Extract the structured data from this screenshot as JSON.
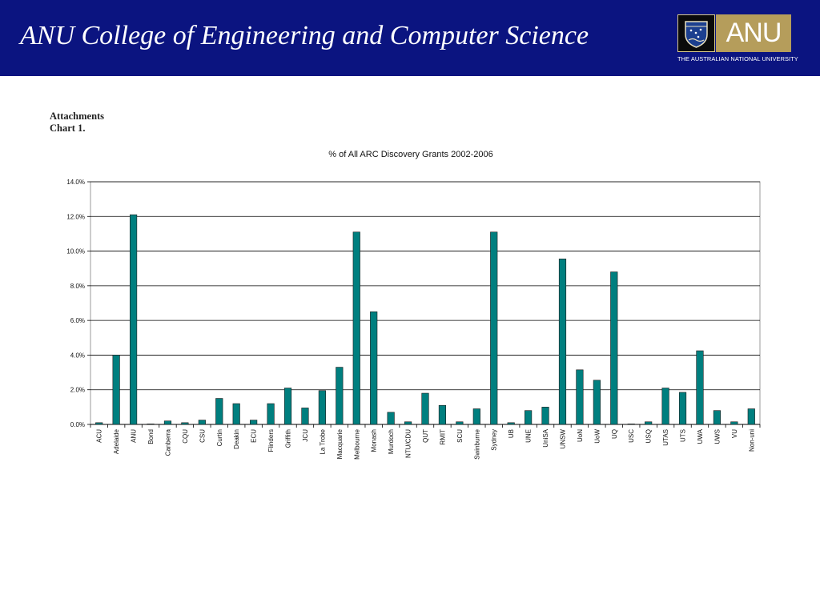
{
  "header": {
    "title": "ANU College of Engineering and Computer Science",
    "logo_text": "ANU",
    "logo_subtitle": "THE AUSTRALIAN NATIONAL UNIVERSITY",
    "logo_crest_icon": "anu-crest-icon",
    "bg_color": "#0b1480"
  },
  "attachments": {
    "line1": "Attachments",
    "line2": "Chart 1."
  },
  "chart_data": {
    "type": "bar",
    "title": "% of All ARC Discovery Grants 2002-2006",
    "xlabel": "",
    "ylabel": "",
    "ylim": [
      0,
      14
    ],
    "y_ticks": [
      "0.0%",
      "2.0%",
      "4.0%",
      "6.0%",
      "8.0%",
      "10.0%",
      "12.0%",
      "14.0%"
    ],
    "grid": true,
    "bar_color": "#007f7f",
    "categories": [
      "ACU",
      "Adelaide",
      "ANU",
      "Bond",
      "Canberra",
      "CQU",
      "CSU",
      "Curtin",
      "Deakin",
      "ECU",
      "Flinders",
      "Griffith",
      "JCU",
      "La Trobe",
      "Macquarie",
      "Melbourne",
      "Monash",
      "Murdoch",
      "NTU/CDU",
      "QUT",
      "RMIT",
      "SCU",
      "Swinburne",
      "Sydney",
      "UB",
      "UNE",
      "UniSA",
      "UNSW",
      "UoN",
      "UoW",
      "UQ",
      "USC",
      "USQ",
      "UTAS",
      "UTS",
      "UWA",
      "UWS",
      "VU",
      "Non-uni"
    ],
    "values": [
      0.1,
      4.0,
      12.1,
      0.03,
      0.2,
      0.1,
      0.25,
      1.5,
      1.2,
      0.25,
      1.2,
      2.1,
      0.95,
      1.95,
      3.3,
      11.1,
      6.5,
      0.7,
      0.15,
      1.8,
      1.1,
      0.15,
      0.9,
      11.1,
      0.1,
      0.8,
      1.0,
      9.55,
      3.15,
      2.55,
      8.8,
      0.03,
      0.15,
      2.1,
      1.85,
      4.25,
      0.8,
      0.15,
      0.9
    ]
  }
}
